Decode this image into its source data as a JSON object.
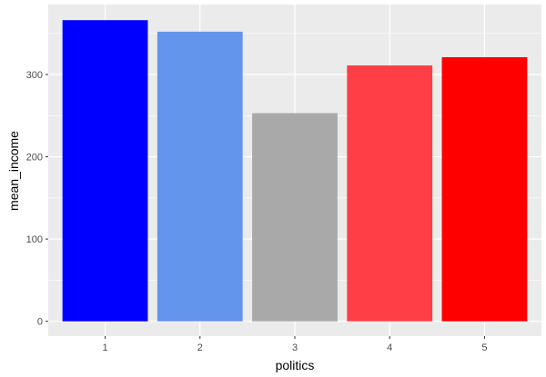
{
  "chart_data": {
    "type": "bar",
    "categories": [
      "1",
      "2",
      "3",
      "4",
      "5"
    ],
    "values": [
      366,
      352,
      253,
      311,
      321
    ],
    "bar_colors": [
      "#0000FF",
      "#6495ED",
      "#A9A9A9",
      "#FF3E45",
      "#FF0000"
    ],
    "xlabel": "politics",
    "ylabel": "mean_income",
    "ylim": [
      -18,
      385
    ],
    "yticks": [
      0,
      100,
      200,
      300
    ],
    "yticks_labels": [
      "0",
      "100",
      "200",
      "300"
    ],
    "grid": true,
    "panel_background": "#EBEBEB",
    "grid_color": "#FFFFFF"
  }
}
